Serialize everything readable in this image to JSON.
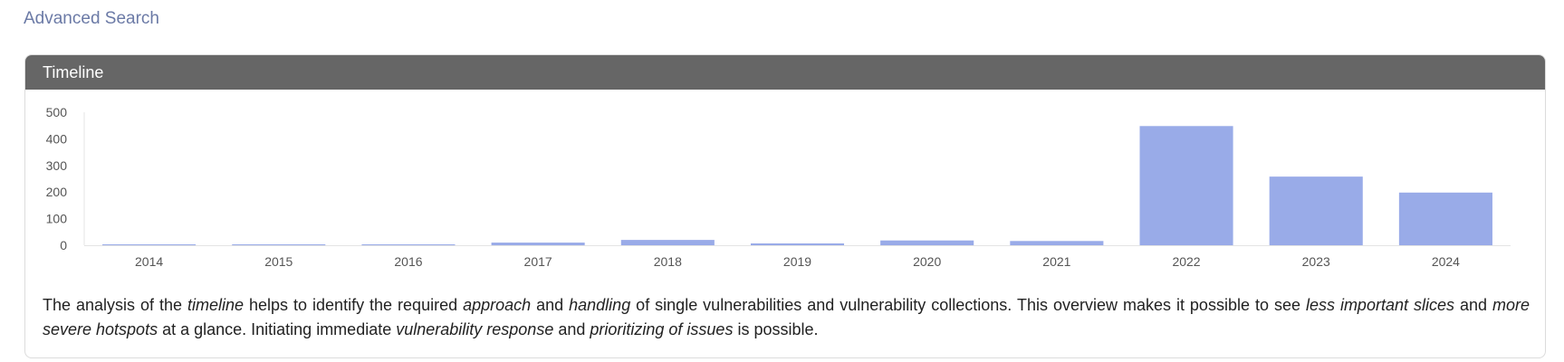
{
  "page": {
    "advanced_search_label": "Advanced Search"
  },
  "card": {
    "title": "Timeline"
  },
  "chart_data": {
    "type": "bar",
    "categories": [
      "2014",
      "2015",
      "2016",
      "2017",
      "2018",
      "2019",
      "2020",
      "2021",
      "2022",
      "2023",
      "2024"
    ],
    "values": [
      2,
      1,
      1,
      10,
      20,
      7,
      18,
      16,
      448,
      258,
      198
    ],
    "yticks": [
      0,
      100,
      200,
      300,
      400,
      500
    ],
    "ylim": [
      0,
      500
    ],
    "color": "#99abe8",
    "title": "",
    "xlabel": "",
    "ylabel": ""
  },
  "description": {
    "p1": "The analysis of the ",
    "e1": "timeline",
    "p2": " helps to identify the required ",
    "e2": "approach",
    "p3": " and ",
    "e3": "handling",
    "p4": " of single vulnerabilities and vulnerability collections. This overview makes it possible to see ",
    "e4": "less important slices",
    "p5": " and ",
    "e5": "more severe hotspots",
    "p6": " at a glance. Initiating immediate ",
    "e6": "vulnerability response",
    "p7": " and ",
    "e7": "prioritizing of issues",
    "p8": " is possible."
  }
}
